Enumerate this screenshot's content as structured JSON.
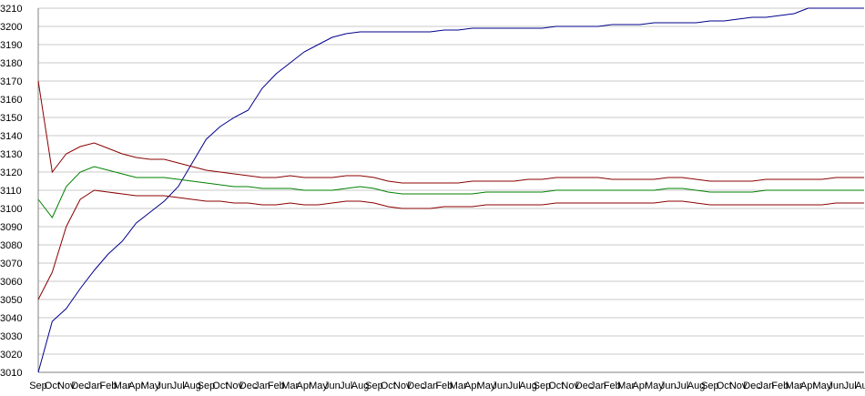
{
  "chart_data": {
    "type": "line",
    "categories": [
      "Sep",
      "Oct",
      "Nov",
      "Dec",
      "Jan",
      "Feb",
      "Mar",
      "Apr",
      "May",
      "Jun",
      "Jul",
      "Aug",
      "Sep",
      "Oct",
      "Nov",
      "Dec",
      "Jan",
      "Feb",
      "Mar",
      "Apr",
      "May",
      "Jun",
      "Jul",
      "Aug",
      "Sep",
      "Oct",
      "Nov",
      "Dec",
      "Jan",
      "Feb",
      "Mar",
      "Apr",
      "May",
      "Jun",
      "Jul",
      "Aug",
      "Sep",
      "Oct",
      "Nov",
      "Dec",
      "Jan",
      "Feb",
      "Mar",
      "Apr",
      "May",
      "Jun",
      "Jul",
      "Aug",
      "Sep",
      "Oct",
      "Nov",
      "Dec",
      "Jan",
      "Feb",
      "Mar",
      "Apr",
      "May",
      "Jun",
      "Jul",
      "Aug"
    ],
    "series": [
      {
        "color": "#00008b",
        "values": [
          3010,
          3038,
          3045,
          3056,
          3066,
          3075,
          3082,
          3092,
          3098,
          3104,
          3112,
          3125,
          3138,
          3145,
          3150,
          3154,
          3166,
          3174,
          3180,
          3186,
          3190,
          3194,
          3196,
          3197,
          3197,
          3197,
          3197,
          3197,
          3197,
          3198,
          3198,
          3199,
          3199,
          3199,
          3199,
          3199,
          3199,
          3200,
          3200,
          3200,
          3200,
          3201,
          3201,
          3201,
          3202,
          3202,
          3202,
          3202,
          3203,
          3203,
          3204,
          3205,
          3205,
          3206,
          3207,
          3210,
          3210,
          3210,
          3210,
          3210
        ]
      },
      {
        "color": "#8b0000",
        "values": [
          3170,
          3120,
          3130,
          3134,
          3136,
          3133,
          3130,
          3128,
          3127,
          3127,
          3125,
          3123,
          3121,
          3120,
          3119,
          3118,
          3117,
          3117,
          3118,
          3117,
          3117,
          3117,
          3118,
          3118,
          3117,
          3115,
          3114,
          3114,
          3114,
          3114,
          3114,
          3115,
          3115,
          3115,
          3115,
          3116,
          3116,
          3117,
          3117,
          3117,
          3117,
          3116,
          3116,
          3116,
          3116,
          3117,
          3117,
          3116,
          3115,
          3115,
          3115,
          3115,
          3116,
          3116,
          3116,
          3116,
          3116,
          3117,
          3117,
          3117
        ]
      },
      {
        "color": "#008000",
        "values": [
          3105,
          3095,
          3112,
          3120,
          3123,
          3121,
          3119,
          3117,
          3117,
          3117,
          3116,
          3115,
          3114,
          3113,
          3112,
          3112,
          3111,
          3111,
          3111,
          3110,
          3110,
          3110,
          3111,
          3112,
          3111,
          3109,
          3108,
          3108,
          3108,
          3108,
          3108,
          3108,
          3109,
          3109,
          3109,
          3109,
          3109,
          3110,
          3110,
          3110,
          3110,
          3110,
          3110,
          3110,
          3110,
          3111,
          3111,
          3110,
          3109,
          3109,
          3109,
          3109,
          3110,
          3110,
          3110,
          3110,
          3110,
          3110,
          3110,
          3110
        ]
      },
      {
        "color": "#8b0000",
        "values": [
          3050,
          3065,
          3090,
          3105,
          3110,
          3109,
          3108,
          3107,
          3107,
          3107,
          3106,
          3105,
          3104,
          3104,
          3103,
          3103,
          3102,
          3102,
          3103,
          3102,
          3102,
          3103,
          3104,
          3104,
          3103,
          3101,
          3100,
          3100,
          3100,
          3101,
          3101,
          3101,
          3102,
          3102,
          3102,
          3102,
          3102,
          3103,
          3103,
          3103,
          3103,
          3103,
          3103,
          3103,
          3103,
          3104,
          3104,
          3103,
          3102,
          3102,
          3102,
          3102,
          3102,
          3102,
          3102,
          3102,
          3102,
          3103,
          3103,
          3103
        ]
      }
    ],
    "ylim": [
      3010,
      3210
    ],
    "yticks": [
      3010,
      3020,
      3030,
      3040,
      3050,
      3060,
      3070,
      3080,
      3090,
      3100,
      3110,
      3120,
      3130,
      3140,
      3150,
      3160,
      3170,
      3180,
      3190,
      3200,
      3210
    ],
    "grid": true
  }
}
